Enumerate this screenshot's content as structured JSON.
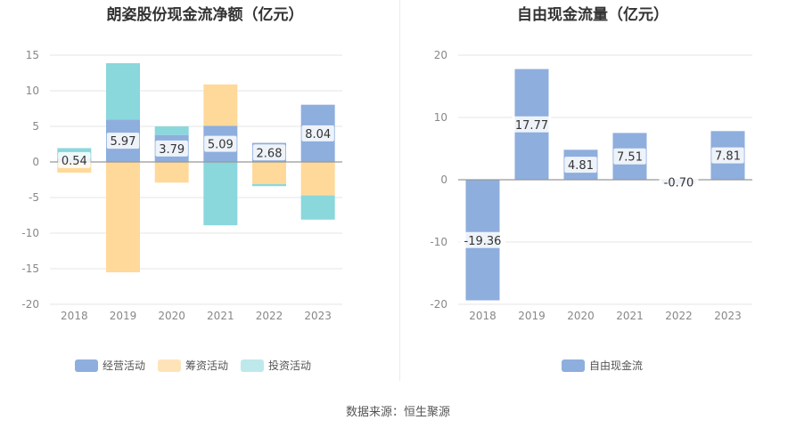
{
  "chart_data": [
    {
      "type": "bar",
      "stacked": true,
      "title": "朗姿股份现金流净额（亿元）",
      "categories": [
        "2018",
        "2019",
        "2020",
        "2021",
        "2022",
        "2023"
      ],
      "series": [
        {
          "name": "经营活动",
          "color": "#8eaedd",
          "values": [
            0.54,
            5.97,
            3.79,
            5.09,
            2.68,
            8.04
          ]
        },
        {
          "name": "筹资活动",
          "color": "#ffd99a",
          "values": [
            -1.5,
            -15.5,
            -2.9,
            5.8,
            -3.1,
            -4.7
          ]
        },
        {
          "name": "投资活动",
          "color": "#8ad7dc",
          "values": [
            1.4,
            7.9,
            1.2,
            -8.9,
            -0.3,
            -3.4
          ]
        }
      ],
      "data_labels": [
        "0.54",
        "5.97",
        "3.79",
        "5.09",
        "2.68",
        "8.04"
      ],
      "ylim": [
        -20,
        15
      ],
      "yticks": [
        "15",
        "10",
        "5",
        "0",
        "-5",
        "-10",
        "-15",
        "-20"
      ],
      "legend": "bottom"
    },
    {
      "type": "bar",
      "title": "自由现金流量（亿元）",
      "categories": [
        "2018",
        "2019",
        "2020",
        "2021",
        "2022",
        "2023"
      ],
      "series": [
        {
          "name": "自由现金流",
          "color": "#8eaedd",
          "values": [
            -19.36,
            17.77,
            4.81,
            7.51,
            -0.7,
            7.81
          ]
        }
      ],
      "data_labels": [
        "-19.36",
        "17.77",
        "4.81",
        "7.51",
        "-0.70",
        "7.81"
      ],
      "ylim": [
        -20,
        20
      ],
      "yticks": [
        "20",
        "10",
        "0",
        "-10",
        "-20"
      ],
      "legend": "bottom"
    }
  ],
  "footer": {
    "source": "数据来源：恒生聚源"
  },
  "colors": {
    "axis": "#999999",
    "grid": "#e6e6e6",
    "label_bg": "#ffffff"
  }
}
